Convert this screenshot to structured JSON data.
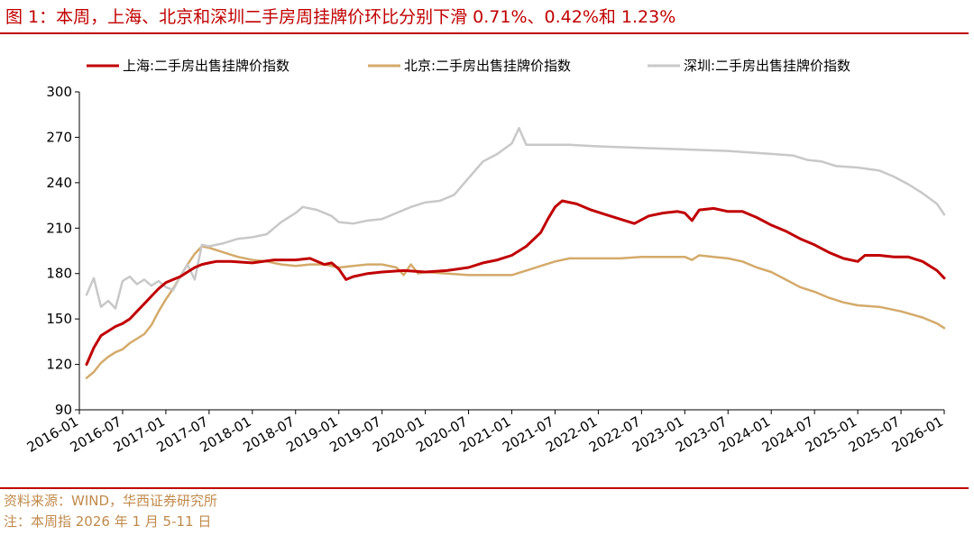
{
  "title": "图 1：本周，上海、北京和深圳二手房周挂牌价环比分别下滑 0.71%、0.42%和 1.23%",
  "footer": {
    "source": "资料来源：WIND，华西证券研究所",
    "note": "注：本周指 2026 年 1 月 5-11 日"
  },
  "chart_data": {
    "type": "line",
    "title": "图 1：本周，上海、北京和深圳二手房周挂牌价环比分别下滑 0.71%、0.42%和 1.23%",
    "xlabel": "",
    "ylabel": "",
    "x_ticks": [
      "2016-01",
      "2016-07",
      "2017-01",
      "2017-07",
      "2018-01",
      "2018-07",
      "2019-01",
      "2019-07",
      "2020-01",
      "2020-07",
      "2021-01",
      "2021-07",
      "2022-01",
      "2022-07",
      "2023-01",
      "2023-07",
      "2024-01",
      "2024-07",
      "2025-01",
      "2025-07",
      "2026-01"
    ],
    "y_ticks": [
      90,
      120,
      150,
      180,
      210,
      240,
      270,
      300
    ],
    "ylim": [
      90,
      300
    ],
    "xlim": [
      "2016-01",
      "2026-01"
    ],
    "grid": false,
    "legend": "top",
    "series": [
      {
        "name": "上海:二手房出售挂牌价指数",
        "color": "#c00000",
        "points": [
          [
            "2016-02",
            120
          ],
          [
            "2016-03",
            131
          ],
          [
            "2016-04",
            139
          ],
          [
            "2016-05",
            142
          ],
          [
            "2016-06",
            145
          ],
          [
            "2016-07",
            147
          ],
          [
            "2016-08",
            150
          ],
          [
            "2016-09",
            155
          ],
          [
            "2016-10",
            160
          ],
          [
            "2016-11",
            165
          ],
          [
            "2016-12",
            170
          ],
          [
            "2017-01",
            174
          ],
          [
            "2017-02",
            176
          ],
          [
            "2017-03",
            178
          ],
          [
            "2017-04",
            181
          ],
          [
            "2017-05",
            184
          ],
          [
            "2017-06",
            186
          ],
          [
            "2017-07",
            187
          ],
          [
            "2017-08",
            188
          ],
          [
            "2017-10",
            188
          ],
          [
            "2018-01",
            187
          ],
          [
            "2018-04",
            189
          ],
          [
            "2018-07",
            189
          ],
          [
            "2018-09",
            190
          ],
          [
            "2018-11",
            186
          ],
          [
            "2018-12",
            187
          ],
          [
            "2019-01",
            183
          ],
          [
            "2019-02",
            176
          ],
          [
            "2019-03",
            178
          ],
          [
            "2019-05",
            180
          ],
          [
            "2019-07",
            181
          ],
          [
            "2019-10",
            182
          ],
          [
            "2020-01",
            181
          ],
          [
            "2020-04",
            182
          ],
          [
            "2020-07",
            184
          ],
          [
            "2020-09",
            187
          ],
          [
            "2020-11",
            189
          ],
          [
            "2021-01",
            192
          ],
          [
            "2021-03",
            198
          ],
          [
            "2021-05",
            207
          ],
          [
            "2021-06",
            216
          ],
          [
            "2021-07",
            224
          ],
          [
            "2021-08",
            228
          ],
          [
            "2021-10",
            226
          ],
          [
            "2021-12",
            222
          ],
          [
            "2022-02",
            219
          ],
          [
            "2022-04",
            216
          ],
          [
            "2022-06",
            213
          ],
          [
            "2022-08",
            218
          ],
          [
            "2022-10",
            220
          ],
          [
            "2022-12",
            221
          ],
          [
            "2023-01",
            220
          ],
          [
            "2023-02",
            215
          ],
          [
            "2023-03",
            222
          ],
          [
            "2023-05",
            223
          ],
          [
            "2023-07",
            221
          ],
          [
            "2023-09",
            221
          ],
          [
            "2023-11",
            217
          ],
          [
            "2024-01",
            212
          ],
          [
            "2024-03",
            208
          ],
          [
            "2024-05",
            203
          ],
          [
            "2024-07",
            199
          ],
          [
            "2024-09",
            194
          ],
          [
            "2024-11",
            190
          ],
          [
            "2025-01",
            188
          ],
          [
            "2025-02",
            192
          ],
          [
            "2025-04",
            192
          ],
          [
            "2025-06",
            191
          ],
          [
            "2025-08",
            191
          ],
          [
            "2025-10",
            188
          ],
          [
            "2025-12",
            182
          ],
          [
            "2026-01",
            177
          ]
        ]
      },
      {
        "name": "北京:二手房出售挂牌价指数",
        "color": "#d4aa6a",
        "points": [
          [
            "2016-02",
            111
          ],
          [
            "2016-03",
            115
          ],
          [
            "2016-04",
            121
          ],
          [
            "2016-05",
            125
          ],
          [
            "2016-06",
            128
          ],
          [
            "2016-07",
            130
          ],
          [
            "2016-08",
            134
          ],
          [
            "2016-09",
            137
          ],
          [
            "2016-10",
            140
          ],
          [
            "2016-11",
            146
          ],
          [
            "2016-12",
            155
          ],
          [
            "2017-01",
            163
          ],
          [
            "2017-02",
            170
          ],
          [
            "2017-03",
            178
          ],
          [
            "2017-04",
            186
          ],
          [
            "2017-05",
            193
          ],
          [
            "2017-06",
            198
          ],
          [
            "2017-07",
            197
          ],
          [
            "2017-09",
            194
          ],
          [
            "2017-11",
            191
          ],
          [
            "2018-01",
            189
          ],
          [
            "2018-03",
            188
          ],
          [
            "2018-05",
            186
          ],
          [
            "2018-07",
            185
          ],
          [
            "2018-09",
            186
          ],
          [
            "2018-11",
            186
          ],
          [
            "2019-01",
            184
          ],
          [
            "2019-03",
            185
          ],
          [
            "2019-05",
            186
          ],
          [
            "2019-07",
            186
          ],
          [
            "2019-09",
            184
          ],
          [
            "2019-10",
            179
          ],
          [
            "2019-11",
            186
          ],
          [
            "2019-12",
            180
          ],
          [
            "2020-01",
            181
          ],
          [
            "2020-04",
            180
          ],
          [
            "2020-07",
            179
          ],
          [
            "2020-10",
            179
          ],
          [
            "2021-01",
            179
          ],
          [
            "2021-03",
            182
          ],
          [
            "2021-05",
            185
          ],
          [
            "2021-07",
            188
          ],
          [
            "2021-09",
            190
          ],
          [
            "2021-11",
            190
          ],
          [
            "2022-01",
            190
          ],
          [
            "2022-04",
            190
          ],
          [
            "2022-07",
            191
          ],
          [
            "2022-10",
            191
          ],
          [
            "2023-01",
            191
          ],
          [
            "2023-02",
            189
          ],
          [
            "2023-03",
            192
          ],
          [
            "2023-05",
            191
          ],
          [
            "2023-07",
            190
          ],
          [
            "2023-09",
            188
          ],
          [
            "2023-11",
            184
          ],
          [
            "2024-01",
            181
          ],
          [
            "2024-03",
            176
          ],
          [
            "2024-05",
            171
          ],
          [
            "2024-07",
            168
          ],
          [
            "2024-09",
            164
          ],
          [
            "2024-11",
            161
          ],
          [
            "2025-01",
            159
          ],
          [
            "2025-04",
            158
          ],
          [
            "2025-07",
            155
          ],
          [
            "2025-10",
            151
          ],
          [
            "2025-12",
            147
          ],
          [
            "2026-01",
            144
          ]
        ]
      },
      {
        "name": "深圳:二手房出售挂牌价指数",
        "color": "#c8c8c8",
        "points": [
          [
            "2016-02",
            166
          ],
          [
            "2016-03",
            177
          ],
          [
            "2016-04",
            158
          ],
          [
            "2016-05",
            162
          ],
          [
            "2016-06",
            157
          ],
          [
            "2016-07",
            175
          ],
          [
            "2016-08",
            178
          ],
          [
            "2016-09",
            173
          ],
          [
            "2016-10",
            176
          ],
          [
            "2016-11",
            172
          ],
          [
            "2016-12",
            175
          ],
          [
            "2017-01",
            171
          ],
          [
            "2017-02",
            169
          ],
          [
            "2017-03",
            178
          ],
          [
            "2017-04",
            186
          ],
          [
            "2017-05",
            176
          ],
          [
            "2017-06",
            199
          ],
          [
            "2017-07",
            198
          ],
          [
            "2017-09",
            200
          ],
          [
            "2017-11",
            203
          ],
          [
            "2018-01",
            204
          ],
          [
            "2018-03",
            206
          ],
          [
            "2018-05",
            214
          ],
          [
            "2018-07",
            220
          ],
          [
            "2018-08",
            224
          ],
          [
            "2018-10",
            222
          ],
          [
            "2018-12",
            218
          ],
          [
            "2019-01",
            214
          ],
          [
            "2019-03",
            213
          ],
          [
            "2019-05",
            215
          ],
          [
            "2019-07",
            216
          ],
          [
            "2019-09",
            220
          ],
          [
            "2019-11",
            224
          ],
          [
            "2020-01",
            227
          ],
          [
            "2020-03",
            228
          ],
          [
            "2020-05",
            232
          ],
          [
            "2020-07",
            243
          ],
          [
            "2020-09",
            254
          ],
          [
            "2020-11",
            259
          ],
          [
            "2021-01",
            266
          ],
          [
            "2021-02",
            276
          ],
          [
            "2021-03",
            265
          ],
          [
            "2021-06",
            265
          ],
          [
            "2021-09",
            265
          ],
          [
            "2022-01",
            264
          ],
          [
            "2022-07",
            263
          ],
          [
            "2023-01",
            262
          ],
          [
            "2023-07",
            261
          ],
          [
            "2024-01",
            259
          ],
          [
            "2024-04",
            258
          ],
          [
            "2024-06",
            255
          ],
          [
            "2024-08",
            254
          ],
          [
            "2024-10",
            251
          ],
          [
            "2025-01",
            250
          ],
          [
            "2025-04",
            248
          ],
          [
            "2025-06",
            244
          ],
          [
            "2025-08",
            239
          ],
          [
            "2025-10",
            233
          ],
          [
            "2025-12",
            226
          ],
          [
            "2026-01",
            219
          ]
        ]
      }
    ]
  }
}
